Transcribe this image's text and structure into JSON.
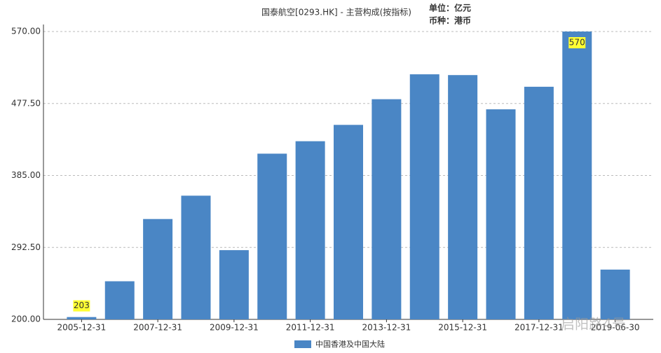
{
  "chart_data": {
    "type": "bar",
    "title": "国泰航空[0293.HK] - 主营构成(按指标)",
    "unit_note": "单位：亿元",
    "currency_note": "币种：港币",
    "watermark": "启阳路4号",
    "categories": [
      "2005-12-31",
      null,
      "2007-12-31",
      null,
      "2009-12-31",
      null,
      "2011-12-31",
      null,
      "2013-12-31",
      null,
      "2015-12-31",
      null,
      "2017-12-31",
      null,
      "2019-06-30"
    ],
    "series": [
      {
        "name": "中国香港及中国大陆",
        "color": "#4a86c5",
        "values": [
          203,
          249,
          329,
          359,
          289,
          413,
          429,
          450,
          483,
          515,
          514,
          470,
          499,
          570,
          264
        ]
      }
    ],
    "labeled_points": [
      0,
      13
    ],
    "ylim": [
      200,
      570
    ],
    "yticks": [
      {
        "value": 200,
        "label": "200.00"
      },
      {
        "value": 292.5,
        "label": "292.50"
      },
      {
        "value": 385,
        "label": "385.00"
      },
      {
        "value": 477.5,
        "label": "477.50"
      },
      {
        "value": 570,
        "label": "570.00"
      }
    ],
    "grid": true
  }
}
